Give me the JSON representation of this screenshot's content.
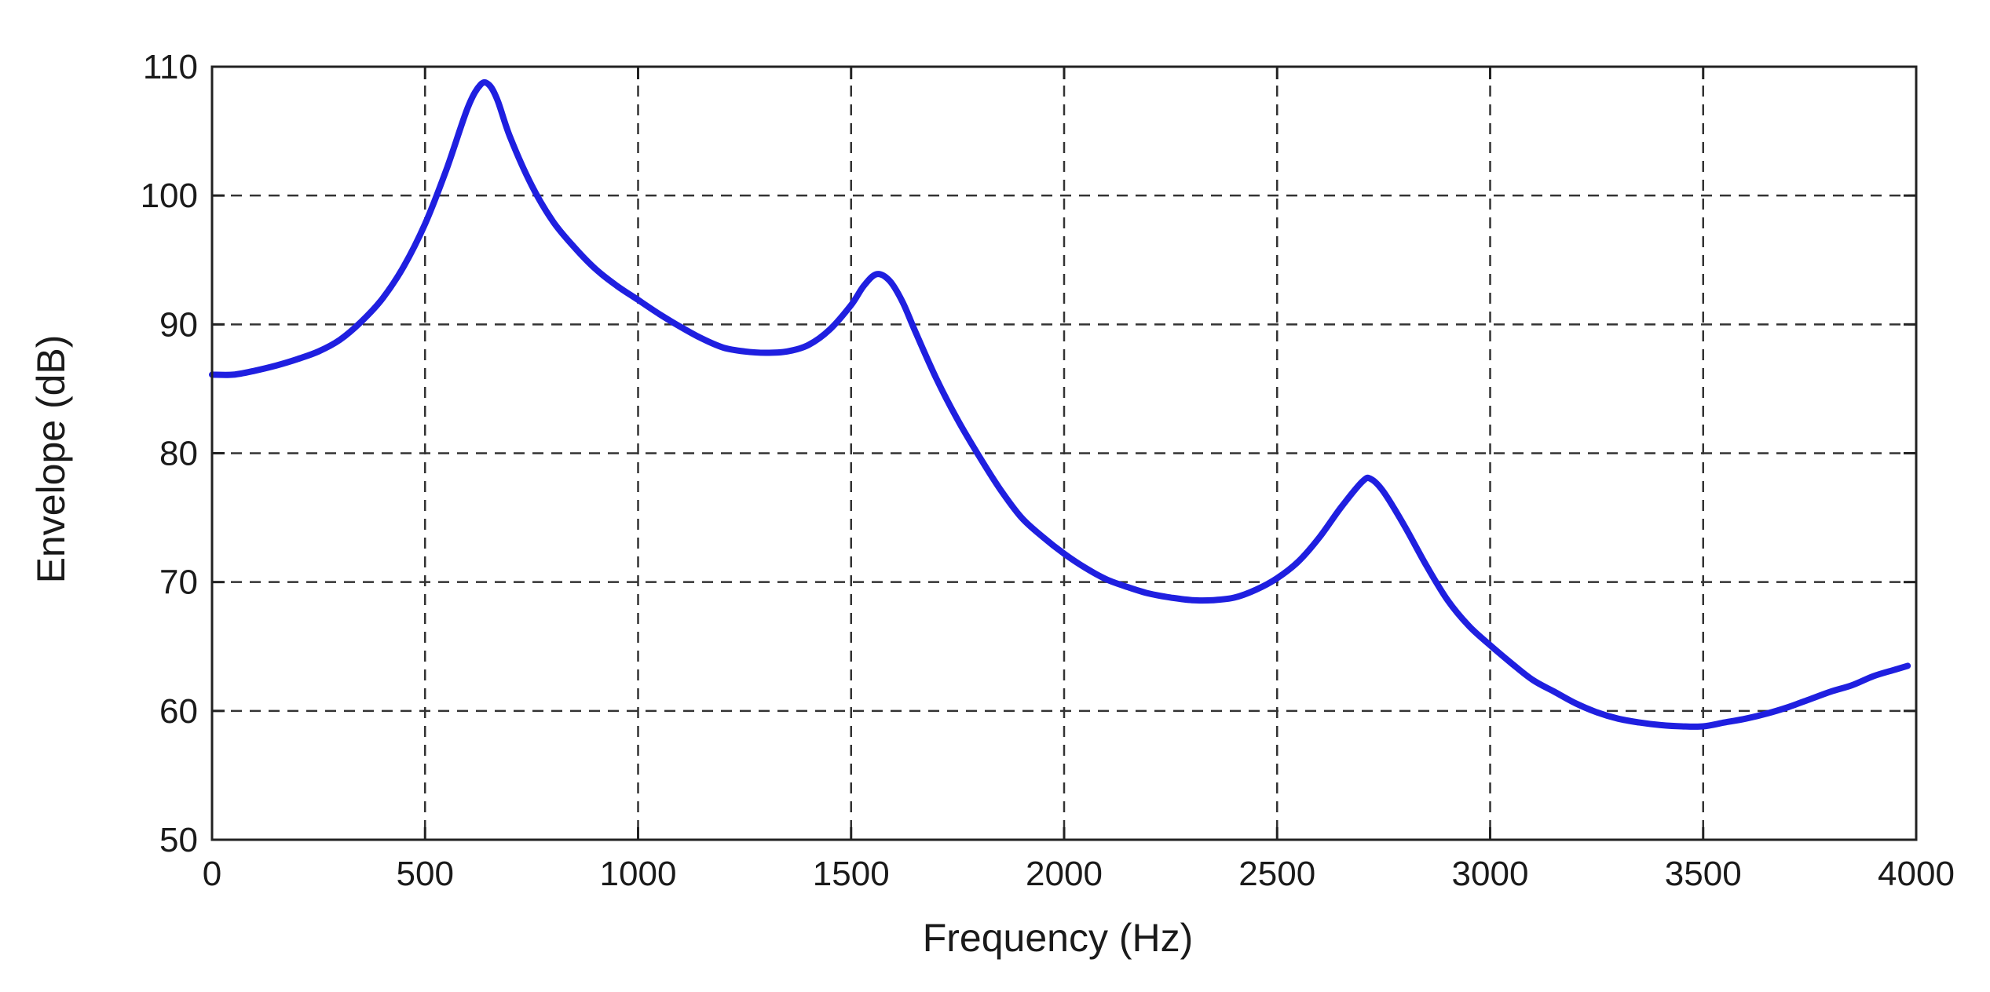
{
  "chart_data": {
    "type": "line",
    "title": "",
    "xlabel": "Frequency (Hz)",
    "ylabel": "Envelope (dB)",
    "xlim": [
      0,
      4000
    ],
    "ylim": [
      50,
      110
    ],
    "grid": true,
    "grid_style": "dashed",
    "x_ticks": [
      "0",
      "500",
      "1000",
      "1500",
      "2000",
      "2500",
      "3000",
      "3500",
      "4000"
    ],
    "y_ticks": [
      "50",
      "60",
      "70",
      "80",
      "90",
      "100",
      "110"
    ],
    "series": [
      {
        "color": "#1f1fe0",
        "x": [
          0,
          50,
          100,
          150,
          200,
          250,
          300,
          350,
          400,
          450,
          500,
          550,
          600,
          630,
          650,
          670,
          700,
          750,
          800,
          850,
          900,
          950,
          1000,
          1050,
          1100,
          1150,
          1200,
          1250,
          1300,
          1350,
          1400,
          1450,
          1500,
          1530,
          1560,
          1590,
          1620,
          1650,
          1700,
          1750,
          1800,
          1850,
          1900,
          1950,
          2000,
          2050,
          2100,
          2150,
          2200,
          2250,
          2300,
          2350,
          2400,
          2450,
          2500,
          2550,
          2600,
          2650,
          2700,
          2720,
          2750,
          2800,
          2850,
          2900,
          2950,
          3000,
          3050,
          3100,
          3150,
          3200,
          3250,
          3300,
          3350,
          3400,
          3450,
          3500,
          3550,
          3600,
          3650,
          3700,
          3750,
          3800,
          3850,
          3900,
          3950,
          3980
        ],
        "y": [
          86.1,
          86.1,
          86.4,
          86.8,
          87.3,
          87.9,
          88.8,
          90.2,
          92.0,
          94.5,
          97.8,
          102.0,
          106.8,
          108.6,
          108.6,
          107.4,
          104.5,
          100.8,
          98.0,
          96.0,
          94.3,
          93.0,
          91.9,
          90.8,
          89.8,
          88.9,
          88.2,
          87.9,
          87.8,
          87.9,
          88.4,
          89.6,
          91.5,
          93.0,
          93.9,
          93.4,
          91.8,
          89.5,
          85.8,
          82.6,
          79.8,
          77.2,
          75.0,
          73.5,
          72.2,
          71.1,
          70.2,
          69.6,
          69.1,
          68.8,
          68.6,
          68.6,
          68.8,
          69.4,
          70.3,
          71.6,
          73.5,
          75.8,
          77.8,
          78.0,
          77.0,
          74.3,
          71.3,
          68.6,
          66.6,
          65.1,
          63.7,
          62.4,
          61.5,
          60.6,
          59.9,
          59.4,
          59.1,
          58.9,
          58.8,
          58.8,
          59.1,
          59.4,
          59.8,
          60.3,
          60.9,
          61.5,
          62.0,
          62.7,
          63.2,
          63.5
        ]
      }
    ]
  }
}
